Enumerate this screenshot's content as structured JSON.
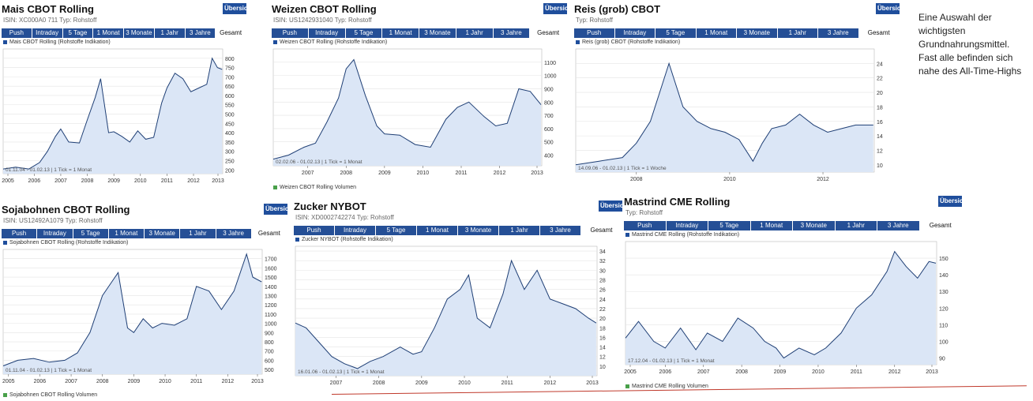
{
  "note": "Eine Auswahl der wichtigsten Grundnahrungsmittel. Fast alle befinden sich nahe des All-Time-Highs",
  "panels": [
    {
      "id": "mais",
      "title": "Mais CBOT Rolling",
      "subtitle": "ISIN: XC000A0 711   Typ: Rohstoff",
      "button": "Übersicht",
      "tabs": [
        "Push",
        "Intraday",
        "5 Tage",
        "1 Monat",
        "3 Monate",
        "1 Jahr",
        "3 Jahre",
        "Gesamt"
      ],
      "active_tab": "Gesamt",
      "legend": "Mais CBOT Rolling (Rohstoffe Indikation)",
      "range_note": "01.11.04 - 01.02.13 | 1 Tick = 1 Monat",
      "color": "#1f3f75",
      "fill": "#dbe6f6"
    },
    {
      "id": "weizen",
      "title": "Weizen CBOT Rolling",
      "subtitle": "ISIN: US1242931040   Typ: Rohstoff",
      "button": "Übersicht",
      "tabs": [
        "Push",
        "Intraday",
        "5 Tage",
        "1 Monat",
        "3 Monate",
        "1 Jahr",
        "3 Jahre",
        "Gesamt"
      ],
      "active_tab": "Gesamt",
      "legend": "Weizen CBOT Rolling (Rohstoffe Indikation)",
      "range_note": "02.02.06 - 01.02.13 | 1 Tick = 1 Monat",
      "legend2": "Weizen CBOT Rolling Volumen",
      "color": "#1f3f75",
      "fill": "#dbe6f6"
    },
    {
      "id": "reis",
      "title": "Reis (grob) CBOT",
      "subtitle": "Typ: Rohstoff",
      "button": "Übersicht",
      "tabs": [
        "Push",
        "Intraday",
        "5 Tage",
        "1 Monat",
        "3 Monate",
        "1 Jahr",
        "3 Jahre",
        "Gesamt"
      ],
      "active_tab": "Gesamt",
      "legend": "Reis (grob) CBOT (Rohstoffe Indikation)",
      "range_note": "14.09.06 - 01.02.13 | 1 Tick = 1 Woche",
      "color": "#1f3f75",
      "fill": "#dbe6f6"
    },
    {
      "id": "soja",
      "title": "Sojabohnen CBOT Rolling",
      "subtitle": "ISIN: US12492A1079   Typ: Rohstoff",
      "button": "Übersicht",
      "tabs": [
        "Push",
        "Intraday",
        "5 Tage",
        "1 Monat",
        "3 Monate",
        "1 Jahr",
        "3 Jahre",
        "Gesamt"
      ],
      "active_tab": "Gesamt",
      "legend": "Sojabohnen CBOT Rolling (Rohstoffe Indikation)",
      "range_note": "01.11.04 - 01.02.13 | 1 Tick = 1 Monat",
      "legend2": "Sojabohnen CBOT Rolling Volumen",
      "color": "#1f3f75",
      "fill": "#dbe6f6"
    },
    {
      "id": "zucker",
      "title": "Zucker NYBOT",
      "subtitle": "ISIN: XD0002742274   Typ: Rohstoff",
      "button": "Übersicht",
      "tabs": [
        "Push",
        "Intraday",
        "5 Tage",
        "1 Monat",
        "3 Monate",
        "1 Jahr",
        "3 Jahre",
        "Gesamt"
      ],
      "active_tab": "Gesamt",
      "legend": "Zucker NYBOT (Rohstoffe Indikation)",
      "range_note": "16.01.06 - 01.02.13 | 1 Tick = 1 Monat",
      "color": "#1f3f75",
      "fill": "#dbe6f6"
    },
    {
      "id": "rind",
      "title": "Mastrind CME Rolling",
      "subtitle": "Typ: Rohstoff",
      "button": "Übersicht",
      "tabs": [
        "Push",
        "Intraday",
        "5 Tage",
        "1 Monat",
        "3 Monate",
        "1 Jahr",
        "3 Jahre",
        "Gesamt"
      ],
      "active_tab": "Gesamt",
      "legend": "Mastrind CME Rolling (Rohstoffe Indikation)",
      "range_note": "17.12.04 - 01.02.13 | 1 Tick = 1 Monat",
      "legend2": "Mastrind CME Rolling Volumen",
      "color": "#1f3f75",
      "fill": "#dbe6f6"
    }
  ],
  "chart_data": [
    {
      "type": "area",
      "title": "Mais CBOT Rolling",
      "x": [
        2004.83,
        2005.3,
        2005.8,
        2006.2,
        2006.5,
        2006.8,
        2007.0,
        2007.3,
        2007.7,
        2008.0,
        2008.3,
        2008.5,
        2008.8,
        2009.0,
        2009.3,
        2009.6,
        2009.9,
        2010.2,
        2010.5,
        2010.8,
        2011.0,
        2011.3,
        2011.6,
        2011.9,
        2012.2,
        2012.5,
        2012.7,
        2012.9,
        2013.08
      ],
      "y": [
        205,
        215,
        205,
        240,
        300,
        380,
        420,
        350,
        345,
        470,
        590,
        690,
        400,
        405,
        380,
        350,
        410,
        365,
        375,
        560,
        640,
        720,
        690,
        620,
        640,
        660,
        800,
        750,
        740
      ],
      "xlim": [
        2004.83,
        2013.1
      ],
      "ylim": [
        180,
        850
      ],
      "ytick_labels": [
        200,
        250,
        300,
        350,
        400,
        450,
        500,
        550,
        600,
        650,
        700,
        750,
        800
      ],
      "xtick_labels": [
        "2005",
        "2006",
        "2007",
        "2008",
        "2009",
        "2010",
        "2011",
        "2012",
        "2013"
      ],
      "legend": "Mais CBOT Rolling (Rohstoffe Indikation)"
    },
    {
      "type": "area",
      "title": "Weizen CBOT Rolling",
      "x": [
        2006.1,
        2006.5,
        2006.9,
        2007.2,
        2007.5,
        2007.8,
        2008.0,
        2008.2,
        2008.5,
        2008.8,
        2009.0,
        2009.4,
        2009.8,
        2010.2,
        2010.6,
        2010.9,
        2011.2,
        2011.6,
        2011.9,
        2012.2,
        2012.5,
        2012.8,
        2013.08
      ],
      "y": [
        370,
        400,
        460,
        490,
        650,
        830,
        1050,
        1120,
        850,
        620,
        560,
        550,
        480,
        460,
        670,
        760,
        800,
        690,
        620,
        640,
        900,
        880,
        780
      ],
      "xlim": [
        2006.1,
        2013.1
      ],
      "ylim": [
        320,
        1200
      ],
      "ytick_labels": [
        400,
        500,
        600,
        700,
        800,
        900,
        1000,
        1100
      ],
      "xtick_labels": [
        "2007",
        "2008",
        "2009",
        "2010",
        "2011",
        "2012",
        "2013"
      ],
      "legend": "Weizen CBOT Rolling (Rohstoffe Indikation)"
    },
    {
      "type": "area",
      "title": "Reis (grob) CBOT",
      "x": [
        2006.7,
        2007.2,
        2007.7,
        2008.0,
        2008.3,
        2008.5,
        2008.7,
        2009.0,
        2009.3,
        2009.6,
        2009.9,
        2010.2,
        2010.5,
        2010.7,
        2010.9,
        2011.2,
        2011.5,
        2011.8,
        2012.1,
        2012.4,
        2012.7,
        2013.08
      ],
      "y": [
        10,
        10.5,
        11,
        13,
        16,
        20,
        24,
        18,
        16,
        15,
        14.5,
        13.5,
        10.5,
        13,
        15,
        15.5,
        17,
        15.5,
        14.5,
        15,
        15.5,
        15.5
      ],
      "xlim": [
        2006.7,
        2013.1
      ],
      "ylim": [
        9,
        26
      ],
      "ytick_labels": [
        10,
        12,
        14,
        16,
        18,
        20,
        22,
        24
      ],
      "xtick_labels": [
        "2008",
        "2010",
        "2012"
      ],
      "legend": "Reis (grob) CBOT (Rohstoffe Indikation)"
    },
    {
      "type": "area",
      "title": "Sojabohnen CBOT Rolling",
      "x": [
        2004.83,
        2005.3,
        2005.8,
        2006.3,
        2006.8,
        2007.2,
        2007.6,
        2008.0,
        2008.3,
        2008.5,
        2008.8,
        2009.0,
        2009.3,
        2009.6,
        2009.9,
        2010.3,
        2010.7,
        2011.0,
        2011.4,
        2011.8,
        2012.2,
        2012.6,
        2012.8,
        2013.08
      ],
      "y": [
        540,
        600,
        620,
        580,
        600,
        680,
        900,
        1300,
        1450,
        1550,
        950,
        900,
        1050,
        950,
        1000,
        980,
        1050,
        1400,
        1350,
        1150,
        1350,
        1750,
        1500,
        1450
      ],
      "xlim": [
        2004.83,
        2013.1
      ],
      "ylim": [
        450,
        1800
      ],
      "ytick_labels": [
        500,
        600,
        700,
        800,
        900,
        1000,
        1100,
        1200,
        1300,
        1400,
        1500,
        1600,
        1700
      ],
      "xtick_labels": [
        "2005",
        "2006",
        "2007",
        "2008",
        "2009",
        "2010",
        "2011",
        "2012",
        "2013"
      ],
      "legend": "Sojabohnen CBOT Rolling (Rohstoffe Indikation)"
    },
    {
      "type": "area",
      "title": "Zucker NYBOT",
      "x": [
        2006.05,
        2006.3,
        2006.6,
        2006.9,
        2007.2,
        2007.5,
        2007.8,
        2008.1,
        2008.5,
        2008.8,
        2009.0,
        2009.3,
        2009.6,
        2009.9,
        2010.1,
        2010.3,
        2010.6,
        2010.9,
        2011.1,
        2011.4,
        2011.7,
        2012.0,
        2012.3,
        2012.6,
        2012.9,
        2013.08
      ],
      "y": [
        19,
        18,
        15,
        12,
        10.5,
        9.5,
        11,
        12,
        14,
        12.5,
        13,
        18,
        24,
        26,
        29,
        20,
        18,
        25,
        32,
        26,
        30,
        24,
        23,
        22,
        20,
        19
      ],
      "xlim": [
        2006.05,
        2013.1
      ],
      "ylim": [
        8,
        35
      ],
      "ytick_labels": [
        10,
        12,
        14,
        16,
        18,
        20,
        22,
        24,
        26,
        28,
        30,
        32,
        34
      ],
      "xtick_labels": [
        "2007",
        "2008",
        "2009",
        "2010",
        "2011",
        "2012",
        "2013"
      ],
      "legend": "Zucker NYBOT (Rohstoffe Indikation)"
    },
    {
      "type": "area",
      "title": "Mastrind CME Rolling",
      "x": [
        2004.96,
        2005.3,
        2005.7,
        2006.0,
        2006.4,
        2006.8,
        2007.1,
        2007.5,
        2007.9,
        2008.3,
        2008.6,
        2008.9,
        2009.1,
        2009.5,
        2009.9,
        2010.2,
        2010.6,
        2011.0,
        2011.4,
        2011.8,
        2012.0,
        2012.3,
        2012.6,
        2012.9,
        2013.08
      ],
      "y": [
        102,
        112,
        100,
        96,
        108,
        95,
        105,
        100,
        114,
        108,
        100,
        96,
        90,
        96,
        92,
        96,
        105,
        120,
        128,
        142,
        154,
        145,
        138,
        148,
        147
      ],
      "xlim": [
        2004.96,
        2013.1
      ],
      "ylim": [
        86,
        160
      ],
      "ytick_labels": [
        90,
        100,
        110,
        120,
        130,
        140,
        150
      ],
      "xtick_labels": [
        "2005",
        "2006",
        "2007",
        "2008",
        "2009",
        "2010",
        "2011",
        "2012",
        "2013"
      ],
      "legend": "Mastrind CME Rolling (Rohstoffe Indikation)"
    }
  ]
}
